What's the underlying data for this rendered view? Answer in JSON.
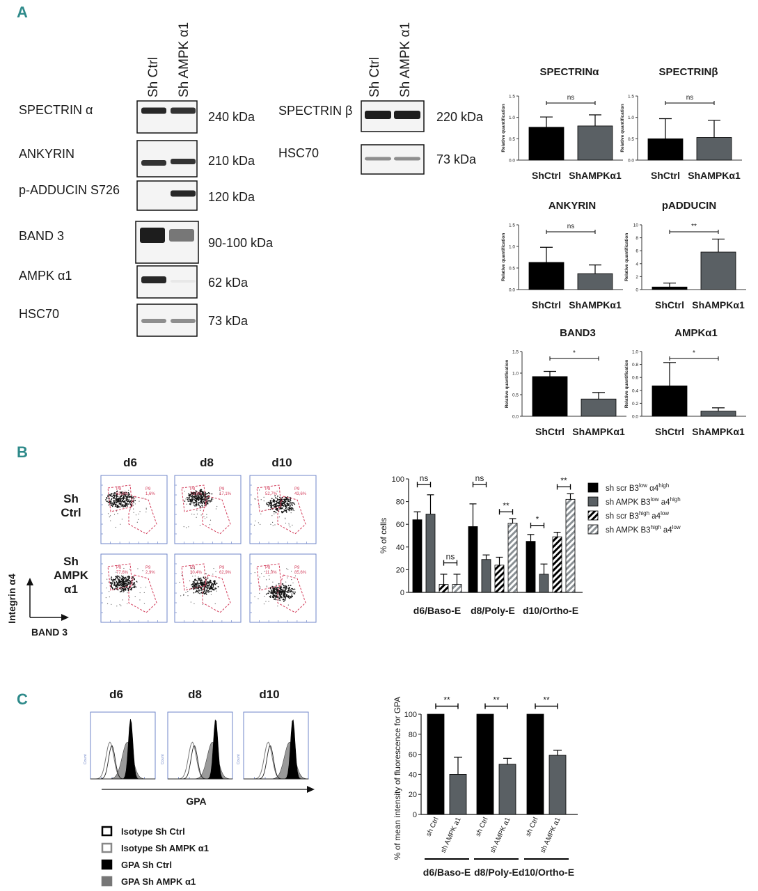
{
  "panels": {
    "a": "A",
    "b": "B",
    "c": "C"
  },
  "colors": {
    "teal": "#2e8a8a",
    "black": "#000000",
    "grey": "#5a6064",
    "flow_red": "#d23c5a",
    "flow_blue": "#6f86c9"
  },
  "blots": {
    "left_headers": [
      "Sh Ctrl",
      "Sh AMPK α1"
    ],
    "left_rows": [
      {
        "name": "SPECTRIN α",
        "kda": "240 kDa"
      },
      {
        "name": "ANKYRIN",
        "kda": "210 kDa"
      },
      {
        "name": "p-ADDUCIN  S726",
        "kda": "120 kDa"
      },
      {
        "name": "BAND 3",
        "kda": "90-100 kDa"
      },
      {
        "name": "AMPK α1",
        "kda": "62 kDa"
      },
      {
        "name": "HSC70",
        "kda": "73 kDa"
      }
    ],
    "right_headers": [
      "Sh Ctrl",
      "Sh AMPK α1"
    ],
    "right_rows": [
      {
        "name": "SPECTRIN β",
        "kda": "220 kDa"
      },
      {
        "name": "HSC70",
        "kda": "73 kDa"
      }
    ]
  },
  "chart_data": [
    {
      "type": "bar",
      "title": "SPECTRINα",
      "categories": [
        "ShCtrl",
        "ShAMPKα1"
      ],
      "values": [
        0.77,
        0.8
      ],
      "errors": [
        0.24,
        0.26
      ],
      "ylabel": "Relative quantification",
      "yticks": [
        "0.0",
        "0.5",
        "1.0",
        "1.5"
      ],
      "ylim": [
        0,
        1.5
      ],
      "significance": "ns"
    },
    {
      "type": "bar",
      "title": "SPECTRINβ",
      "categories": [
        "ShCtrl",
        "ShAMPKα1"
      ],
      "values": [
        0.5,
        0.53
      ],
      "errors": [
        0.47,
        0.4
      ],
      "ylabel": "Relative quantification",
      "yticks": [
        "0.0",
        "0.5",
        "1.0",
        "1.5"
      ],
      "ylim": [
        0,
        1.5
      ],
      "significance": "ns"
    },
    {
      "type": "bar",
      "title": "ANKYRIN",
      "categories": [
        "ShCtrl",
        "ShAMPKα1"
      ],
      "values": [
        0.63,
        0.37
      ],
      "errors": [
        0.35,
        0.2
      ],
      "ylabel": "Relative quantification",
      "yticks": [
        "0.0",
        "0.5",
        "1.0",
        "1.5"
      ],
      "ylim": [
        0,
        1.5
      ],
      "significance": "ns"
    },
    {
      "type": "bar",
      "title": "pADDUCIN",
      "categories": [
        "ShCtrl",
        "ShAMPKα1"
      ],
      "values": [
        0.4,
        5.8
      ],
      "errors": [
        0.6,
        2.0
      ],
      "ylabel": "Relative quantification",
      "yticks": [
        "0",
        "2",
        "4",
        "6",
        "8",
        "10"
      ],
      "ylim": [
        0,
        10
      ],
      "significance": "**"
    },
    {
      "type": "bar",
      "title": "BAND3",
      "categories": [
        "ShCtrl",
        "ShAMPKα1"
      ],
      "values": [
        0.92,
        0.4
      ],
      "errors": [
        0.12,
        0.15
      ],
      "ylabel": "Relative quantification",
      "yticks": [
        "0.0",
        "0.5",
        "1.0",
        "1.5"
      ],
      "ylim": [
        0,
        1.5
      ],
      "significance": "*"
    },
    {
      "type": "bar",
      "title": "AMPKα1",
      "categories": [
        "ShCtrl",
        "ShAMPKα1"
      ],
      "values": [
        0.47,
        0.08
      ],
      "errors": [
        0.36,
        0.05
      ],
      "ylabel": "Relative quantification",
      "yticks": [
        "0.0",
        "0.2",
        "0.4",
        "0.6",
        "0.8",
        "1.0"
      ],
      "ylim": [
        0,
        1.0
      ],
      "significance": "*"
    },
    {
      "type": "bar",
      "title": "",
      "categories": [
        "d6/Baso-E",
        "d8/Poly-E",
        "d10/Ortho-E"
      ],
      "ylabel": "% of cells",
      "yticks": [
        "0",
        "20",
        "40",
        "60",
        "80",
        "100"
      ],
      "ylim": [
        0,
        100
      ],
      "series": [
        {
          "name": "sh scr B3low α4high",
          "values": [
            64,
            58,
            45
          ],
          "errors": [
            7,
            20,
            6
          ]
        },
        {
          "name": "sh AMPK B3low a4high",
          "values": [
            69,
            29,
            16
          ],
          "errors": [
            17,
            4,
            9
          ]
        },
        {
          "name": "sh scr B3high a4low",
          "values": [
            7,
            24,
            49
          ],
          "errors": [
            9,
            7,
            4
          ]
        },
        {
          "name": "sh AMPK B3high a4low",
          "values": [
            7,
            61,
            82
          ],
          "errors": [
            9,
            4,
            5
          ]
        }
      ],
      "significance": [
        "ns",
        "ns",
        "ns",
        "**",
        "*",
        "**"
      ]
    },
    {
      "type": "bar",
      "title": "",
      "categories": [
        "d6/Baso-E",
        "d8/Poly-E",
        "d10/Ortho-E"
      ],
      "ylabel": "% of mean intensity of fluorescence for GPA",
      "yticks": [
        "0",
        "20",
        "40",
        "60",
        "80",
        "100"
      ],
      "ylim": [
        0,
        100
      ],
      "bar_labels": [
        "sh Ctrl",
        "sh AMPK a1"
      ],
      "series": [
        {
          "name": "sh Ctrl",
          "values": [
            100,
            100,
            100
          ],
          "errors": [
            0,
            0,
            0
          ]
        },
        {
          "name": "sh AMPK a1",
          "values": [
            40,
            50,
            59
          ],
          "errors": [
            17,
            6,
            5
          ]
        }
      ],
      "significance": [
        "**",
        "**",
        "**"
      ]
    }
  ],
  "legend_b": [
    {
      "base": "sh scr B3",
      "sup1": "low",
      "mid": " α4",
      "sup2": "high"
    },
    {
      "base": "sh AMPK B3",
      "sup1": "low",
      "mid": " a4",
      "sup2": "high"
    },
    {
      "base": "sh scr B3",
      "sup1": "high",
      "mid": " a4",
      "sup2": "low"
    },
    {
      "base": "sh AMPK B3",
      "sup1": "high",
      "mid": " a4",
      "sup2": "low"
    }
  ],
  "flow": {
    "days": [
      "d6",
      "d8",
      "d10"
    ],
    "rows": [
      {
        "l1": "Sh",
        "l2": "Ctrl",
        "l3": ""
      },
      {
        "l1": "Sh",
        "l2": "AMPK",
        "l3": "α1"
      }
    ],
    "gates": [
      [
        {
          "p8": "P8",
          "v8": "63,6%",
          "p9": "P9",
          "v9": "1,6%"
        },
        {
          "p8": "P8",
          "v8": "73,9%",
          "p9": "P9",
          "v9": "17,1%"
        },
        {
          "p8": "P8",
          "v8": "52,7%",
          "p9": "P9",
          "v9": "43,6%"
        }
      ],
      [
        {
          "p8": "P8",
          "v8": "77,6%",
          "p9": "P9",
          "v9": "2,9%"
        },
        {
          "p8": "P8",
          "v8": "30,4%",
          "p9": "P9",
          "v9": "62,9%"
        },
        {
          "p8": "P8",
          "v8": "11,0%",
          "p9": "P9",
          "v9": "85,6%"
        }
      ]
    ],
    "y_axis": "Integrin α4",
    "x_axis": "BAND 3"
  },
  "histo": {
    "days": [
      "d6",
      "d8",
      "d10"
    ],
    "x_axis": "GPA",
    "y_label": "Count",
    "legend": [
      "Isotype Sh Ctrl",
      "Isotype Sh AMPK α1",
      "GPA Sh Ctrl",
      "GPA Sh AMPK α1"
    ]
  }
}
